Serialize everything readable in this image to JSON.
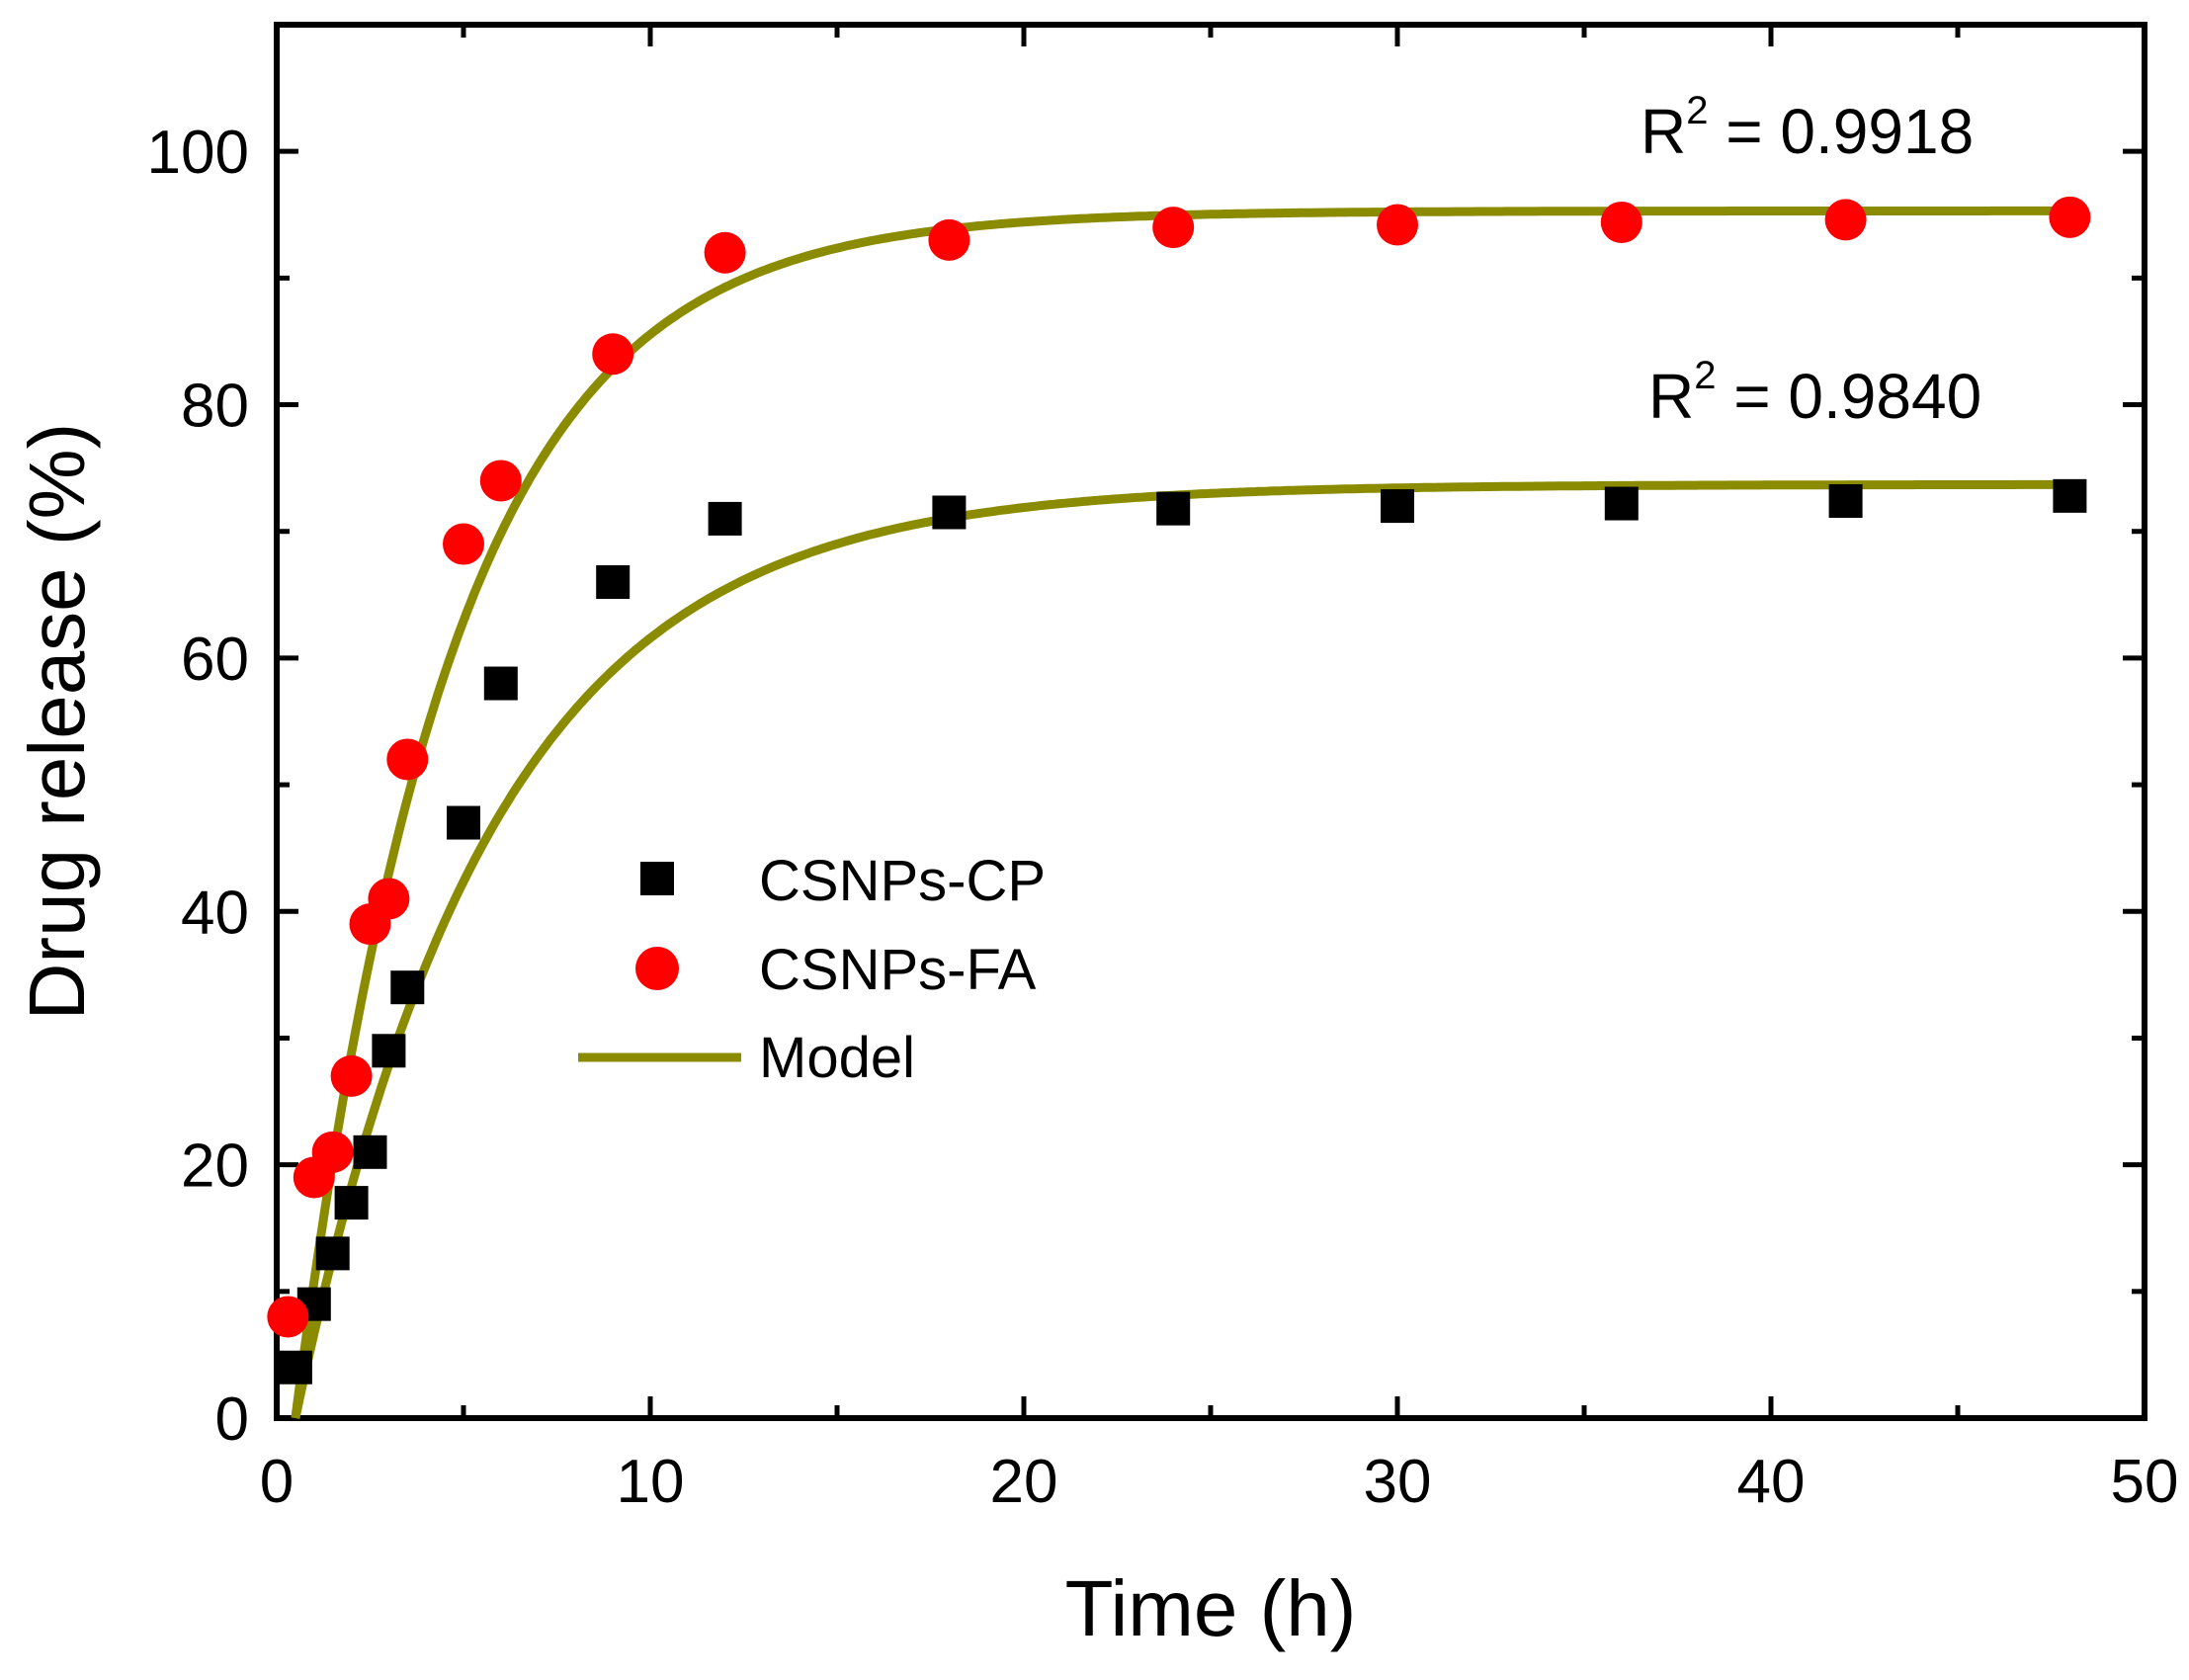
{
  "chart_data": {
    "type": "scatter",
    "xlabel": "Time (h)",
    "ylabel": "Drug release (%)",
    "xlim": [
      0,
      50
    ],
    "ylim": [
      0,
      110
    ],
    "x_ticks": [
      0,
      10,
      20,
      30,
      40,
      50
    ],
    "y_ticks": [
      0,
      20,
      40,
      60,
      80,
      100
    ],
    "x_tick_labels": [
      "0",
      "10",
      "20",
      "30",
      "40",
      "50"
    ],
    "y_tick_labels": [
      "0",
      "20",
      "40",
      "60",
      "80",
      "100"
    ],
    "grid": false,
    "legend_position": "center",
    "series": [
      {
        "name": "CSNPs-CP",
        "marker": "square",
        "color": "#000000",
        "x": [
          0.5,
          1,
          1.5,
          2,
          2.5,
          3,
          3.5,
          5,
          6,
          9,
          12,
          18,
          24,
          30,
          36,
          42,
          48
        ],
        "y": [
          4,
          9,
          13,
          17,
          21,
          29,
          34,
          47,
          58,
          66,
          71,
          71.5,
          71.8,
          72,
          72.2,
          72.4,
          72.8
        ]
      },
      {
        "name": "CSNPs-FA",
        "marker": "circle",
        "color": "#ff0000",
        "x": [
          0.3,
          1,
          1.5,
          2,
          2.5,
          3,
          3.5,
          5,
          6,
          9,
          12,
          18,
          24,
          30,
          36,
          42,
          48
        ],
        "y": [
          8,
          19,
          21,
          27,
          39,
          41,
          52,
          69,
          74,
          84,
          92,
          93,
          94,
          94.2,
          94.4,
          94.6,
          94.8
        ]
      },
      {
        "name": "Model",
        "type": "line",
        "color": "#8b8b00",
        "fits": [
          {
            "for": "CSNPs-FA",
            "plateau": 95.3,
            "rate": 0.24,
            "t0": 0.5,
            "r2_label": "R",
            "r2_sup": "2",
            "r2_value": " = 0.9918"
          },
          {
            "for": "CSNPs-CP",
            "plateau": 73.7,
            "rate": 0.19,
            "t0": 0.5,
            "r2_label": "R",
            "r2_sup": "2",
            "r2_value": " = 0.9840"
          }
        ]
      }
    ],
    "legend": [
      "CSNPs-CP",
      "CSNPs-FA",
      "Model"
    ]
  }
}
